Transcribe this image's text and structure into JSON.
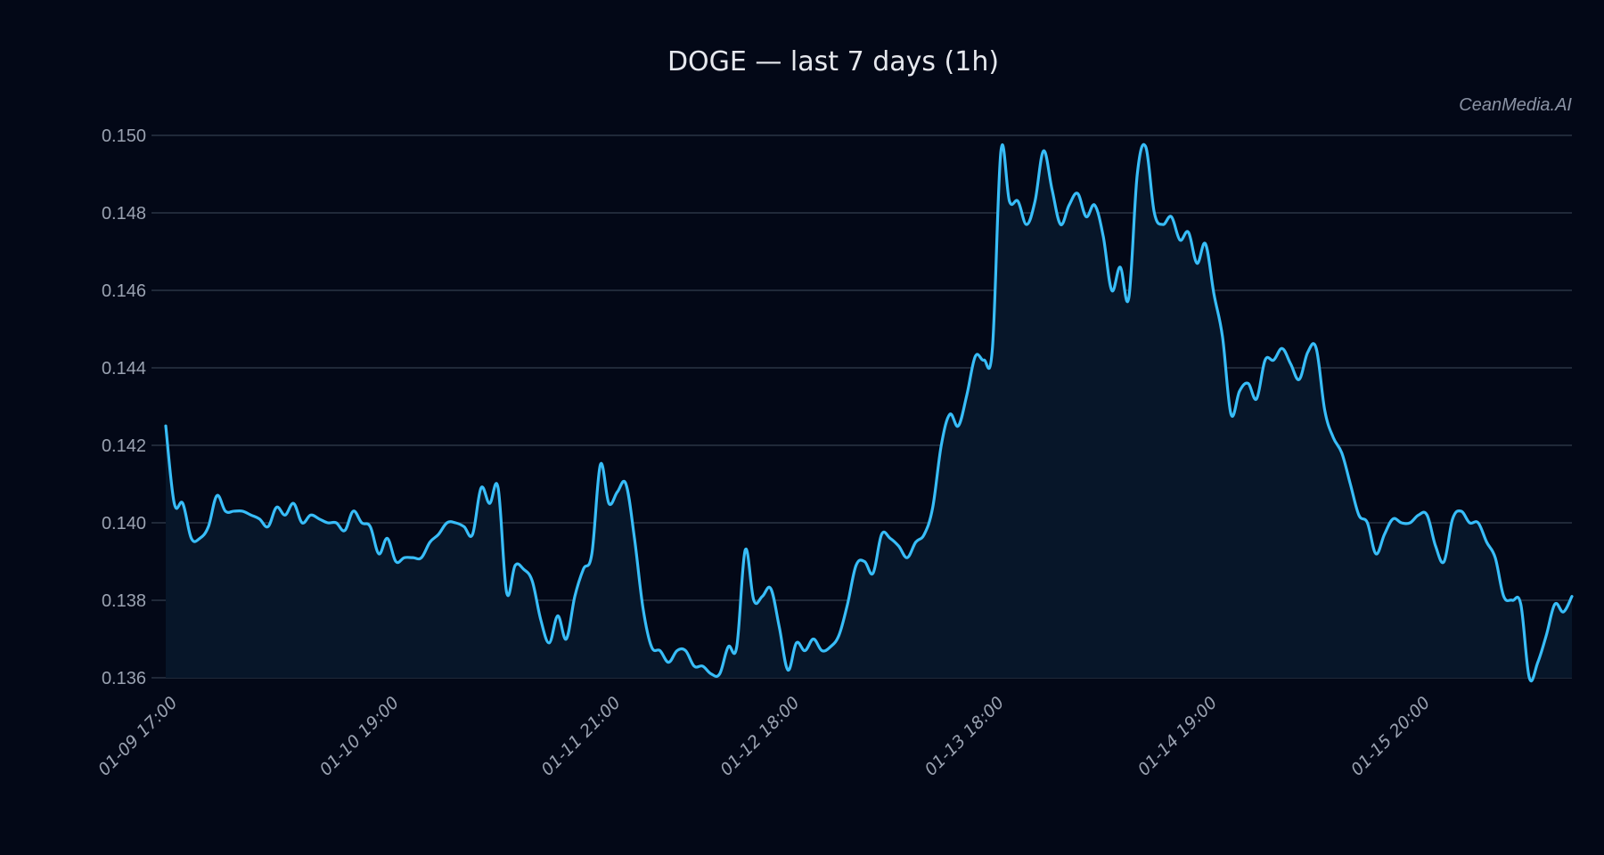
{
  "header": {
    "title": "DOGE — last 7 days (1h)",
    "watermark": "CeanMedia.AI"
  },
  "colors": {
    "background": "#030817",
    "line": "#38bdf8",
    "fill": "#071629",
    "grid": "#2b3445",
    "tick_text": "#9aa2b1",
    "title_text": "#e6e8ee"
  },
  "chart_data": {
    "type": "area",
    "title": "DOGE — last 7 days (1h)",
    "xlabel": "",
    "ylabel": "",
    "ylim": [
      0.136,
      0.15
    ],
    "grid": true,
    "legend": null,
    "yticks": [
      "0.136",
      "0.138",
      "0.140",
      "0.142",
      "0.144",
      "0.146",
      "0.148",
      "0.150"
    ],
    "xticks": [
      {
        "label": "01-09 17:00",
        "index": 0
      },
      {
        "label": "01-10 19:00",
        "index": 26
      },
      {
        "label": "01-11 21:00",
        "index": 52
      },
      {
        "label": "01-12 18:00",
        "index": 73
      },
      {
        "label": "01-13 18:00",
        "index": 97
      },
      {
        "label": "01-14 19:00",
        "index": 122
      },
      {
        "label": "01-15 20:00",
        "index": 147
      }
    ],
    "series": [
      {
        "name": "DOGE",
        "values": [
          0.1425,
          0.1405,
          0.1405,
          0.1396,
          0.1396,
          0.1399,
          0.1407,
          0.1403,
          0.1403,
          0.1403,
          0.1402,
          0.1401,
          0.1399,
          0.1404,
          0.1402,
          0.1405,
          0.14,
          0.1402,
          0.1401,
          0.14,
          0.14,
          0.1398,
          0.1403,
          0.14,
          0.1399,
          0.1392,
          0.1396,
          0.139,
          0.1391,
          0.1391,
          0.1391,
          0.1395,
          0.1397,
          0.14,
          0.14,
          0.1399,
          0.1397,
          0.1409,
          0.1405,
          0.1409,
          0.1382,
          0.1389,
          0.1388,
          0.1385,
          0.1375,
          0.1369,
          0.1376,
          0.137,
          0.1381,
          0.1388,
          0.1392,
          0.1415,
          0.1405,
          0.1408,
          0.141,
          0.1396,
          0.1378,
          0.1368,
          0.1367,
          0.1364,
          0.1367,
          0.1367,
          0.1363,
          0.1363,
          0.1361,
          0.1361,
          0.1368,
          0.1368,
          0.1393,
          0.138,
          0.1381,
          0.1383,
          0.1373,
          0.1362,
          0.1369,
          0.1367,
          0.137,
          0.1367,
          0.1368,
          0.1371,
          0.1379,
          0.1389,
          0.139,
          0.1387,
          0.1397,
          0.1396,
          0.1394,
          0.1391,
          0.1395,
          0.1397,
          0.1404,
          0.142,
          0.1428,
          0.1425,
          0.1433,
          0.1443,
          0.1442,
          0.1445,
          0.1496,
          0.1483,
          0.1483,
          0.1477,
          0.1483,
          0.1496,
          0.1486,
          0.1477,
          0.1482,
          0.1485,
          0.1479,
          0.1482,
          0.1474,
          0.146,
          0.1466,
          0.1458,
          0.149,
          0.1497,
          0.148,
          0.1477,
          0.1479,
          0.1473,
          0.1475,
          0.1467,
          0.1472,
          0.1459,
          0.1448,
          0.1428,
          0.1434,
          0.1436,
          0.1432,
          0.1442,
          0.1442,
          0.1445,
          0.1441,
          0.1437,
          0.1444,
          0.1445,
          0.1429,
          0.1422,
          0.1418,
          0.141,
          0.1402,
          0.14,
          0.1392,
          0.1397,
          0.1401,
          0.14,
          0.14,
          0.1402,
          0.1402,
          0.1394,
          0.139,
          0.1401,
          0.1403,
          0.14,
          0.14,
          0.1395,
          0.1391,
          0.1381,
          0.138,
          0.1379,
          0.136,
          0.1364,
          0.1371,
          0.1379,
          0.1377,
          0.1381
        ]
      }
    ]
  }
}
